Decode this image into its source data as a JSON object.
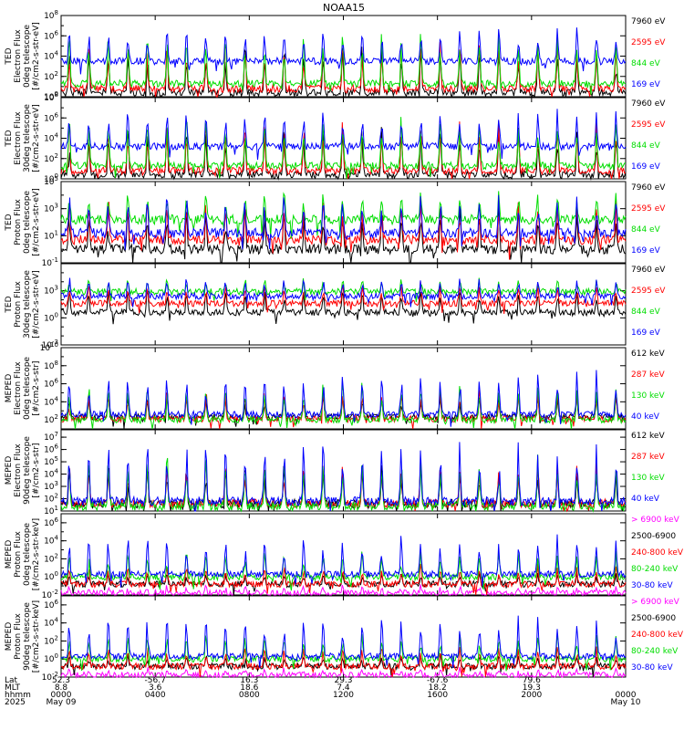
{
  "title": "NOAA15",
  "chart_data": [
    {
      "type": "line",
      "ylabel": [
        "TED",
        "Electron Flux",
        "0deg telescope",
        "[#/cm2-s-str-eV]"
      ],
      "yticks": [
        "10^0",
        "10^2",
        "10^4",
        "10^6",
        "10^8"
      ],
      "ylim_exp": [
        0,
        8
      ],
      "series": [
        {
          "name": "7960 eV",
          "color": "#000000",
          "base": 0.4,
          "peak": 5.5
        },
        {
          "name": "2595 eV",
          "color": "#ff0000",
          "base": 0.8,
          "peak": 6
        },
        {
          "name": "844 eV",
          "color": "#00dd00",
          "base": 1.3,
          "peak": 6.5
        },
        {
          "name": "169 eV",
          "color": "#0000ff",
          "base": 3.5,
          "peak": 7
        }
      ]
    },
    {
      "type": "line",
      "ylabel": [
        "TED",
        "Electron Flux",
        "30deg telescope",
        "[#/cm2-s-str-eV]"
      ],
      "yticks": [
        "10^0",
        "10^2",
        "10^4",
        "10^6",
        "10^8"
      ],
      "ylim_exp": [
        0,
        8
      ],
      "series": [
        {
          "name": "7960 eV",
          "color": "#000000",
          "base": 0.4,
          "peak": 5.5
        },
        {
          "name": "2595 eV",
          "color": "#ff0000",
          "base": 0.8,
          "peak": 6
        },
        {
          "name": "844 eV",
          "color": "#00dd00",
          "base": 1.3,
          "peak": 6.5
        },
        {
          "name": "169 eV",
          "color": "#0000ff",
          "base": 3.2,
          "peak": 7
        }
      ]
    },
    {
      "type": "line",
      "ylabel": [
        "TED",
        "Proton Flux",
        "0deg telescope",
        "[#/cm2-s-str-eV]"
      ],
      "yticks": [
        "10^-1",
        "10^1",
        "10^3",
        "10^5"
      ],
      "ylim_exp": [
        -1,
        5
      ],
      "series": [
        {
          "name": "7960 eV",
          "color": "#000000",
          "base": 0.0,
          "peak": 3.5
        },
        {
          "name": "2595 eV",
          "color": "#ff0000",
          "base": 0.7,
          "peak": 3.8
        },
        {
          "name": "844 eV",
          "color": "#00dd00",
          "base": 2.2,
          "peak": 4.5
        },
        {
          "name": "169 eV",
          "color": "#0000ff",
          "base": 1.2,
          "peak": 4.2
        }
      ]
    },
    {
      "type": "line",
      "ylabel": [
        "TED",
        "Proton Flux",
        "30deg telescope",
        "[#/cm2-s-str-eV]"
      ],
      "yticks": [
        "10^-3",
        "10^0",
        "10^3"
      ],
      "ylim_exp": [
        -3,
        6
      ],
      "series": [
        {
          "name": "7960 eV",
          "color": "#000000",
          "base": 0.6,
          "peak": 3.5
        },
        {
          "name": "2595 eV",
          "color": "#ff0000",
          "base": 1.6,
          "peak": 4
        },
        {
          "name": "844 eV",
          "color": "#00dd00",
          "base": 2.9,
          "peak": 4.5
        },
        {
          "name": "169 eV",
          "color": "#0000ff",
          "base": 2.4,
          "peak": 4.5
        }
      ]
    },
    {
      "type": "line",
      "ylabel": [
        "MEPED",
        "Electron Flux",
        "0deg telescope",
        "[#/cm2-s-str]"
      ],
      "yticks": [
        "10^2",
        "10^4",
        "10^6",
        "10^8",
        "10^10"
      ],
      "ylim_exp": [
        1,
        10
      ],
      "series": [
        {
          "name": "612 keV",
          "color": "#000000",
          "base": 2.3,
          "peak": 5
        },
        {
          "name": "287 keV",
          "color": "#ff0000",
          "base": 2.1,
          "peak": 5.5
        },
        {
          "name": "130 keV",
          "color": "#00dd00",
          "base": 2.0,
          "peak": 6.5
        },
        {
          "name": "40 keV",
          "color": "#0000ff",
          "base": 2.6,
          "peak": 7.5
        }
      ]
    },
    {
      "type": "line",
      "ylabel": [
        "MEPED",
        "Electron Flux",
        "90deg telescope",
        "[#/cm2-s-str]"
      ],
      "yticks": [
        "10^1",
        "10^2",
        "10^3",
        "10^4",
        "10^5",
        "10^6",
        "10^7"
      ],
      "ylim_exp": [
        1,
        7.6
      ],
      "series": [
        {
          "name": "612 keV",
          "color": "#000000",
          "base": 1.6,
          "peak": 5
        },
        {
          "name": "287 keV",
          "color": "#ff0000",
          "base": 1.6,
          "peak": 5.5
        },
        {
          "name": "130 keV",
          "color": "#00dd00",
          "base": 1.4,
          "peak": 6
        },
        {
          "name": "40 keV",
          "color": "#0000ff",
          "base": 1.8,
          "peak": 7
        }
      ]
    },
    {
      "type": "line",
      "ylabel": [
        "MEPED",
        "Proton Flux",
        "0deg telescope",
        "[#/cm2-s-str-keV]"
      ],
      "yticks": [
        "10^-2",
        "10^0",
        "10^2",
        "10^4",
        "10^6"
      ],
      "ylim_exp": [
        -2,
        7
      ],
      "series": [
        {
          "name": "> 6900 keV",
          "color": "#ff00ff",
          "base": -1.8,
          "peak": -1.0
        },
        {
          "name": "2500-6900",
          "color": "#000000",
          "base": -0.8,
          "peak": 0.5
        },
        {
          "name": "240-800 keV",
          "color": "#ff0000",
          "base": -0.8,
          "peak": 1.5
        },
        {
          "name": "80-240 keV",
          "color": "#00dd00",
          "base": 0.0,
          "peak": 3
        },
        {
          "name": "30-80 keV",
          "color": "#0000ff",
          "base": 0.3,
          "peak": 5
        }
      ]
    },
    {
      "type": "line",
      "ylabel": [
        "MEPED",
        "Proton Flux",
        "90deg telescope",
        "[#/cm2-s-str-keV]"
      ],
      "yticks": [
        "10^-2",
        "10^0",
        "10^2",
        "10^4",
        "10^6"
      ],
      "ylim_exp": [
        -2,
        7
      ],
      "series": [
        {
          "name": "> 6900 keV",
          "color": "#ff00ff",
          "base": -1.8,
          "peak": -1.0
        },
        {
          "name": "2500-6900",
          "color": "#000000",
          "base": -0.8,
          "peak": 0.5
        },
        {
          "name": "240-800 keV",
          "color": "#ff0000",
          "base": -0.8,
          "peak": 1.5
        },
        {
          "name": "80-240 keV",
          "color": "#00dd00",
          "base": 0.0,
          "peak": 3
        },
        {
          "name": "30-80 keV",
          "color": "#0000ff",
          "base": 0.3,
          "peak": 5
        }
      ]
    }
  ],
  "x_axis": {
    "row_labels": [
      "Lat",
      "MLT",
      "hhmm",
      "2025"
    ],
    "ticks": [
      {
        "lat": "52.3",
        "mlt": "8.8",
        "time": "0000",
        "date": "May 09"
      },
      {
        "lat": "-56.7",
        "mlt": "3.6",
        "time": "0400",
        "date": ""
      },
      {
        "lat": "16.3",
        "mlt": "18.6",
        "time": "0800",
        "date": ""
      },
      {
        "lat": "29.3",
        "mlt": "7.4",
        "time": "1200",
        "date": ""
      },
      {
        "lat": "-67.6",
        "mlt": "18.2",
        "time": "1600",
        "date": ""
      },
      {
        "lat": "79.6",
        "mlt": "19.3",
        "time": "2000",
        "date": ""
      },
      {
        "lat": "",
        "mlt": "",
        "time": "0000",
        "date": "May 10"
      }
    ],
    "hours": [
      0,
      4,
      8,
      12,
      16,
      20,
      24
    ]
  }
}
